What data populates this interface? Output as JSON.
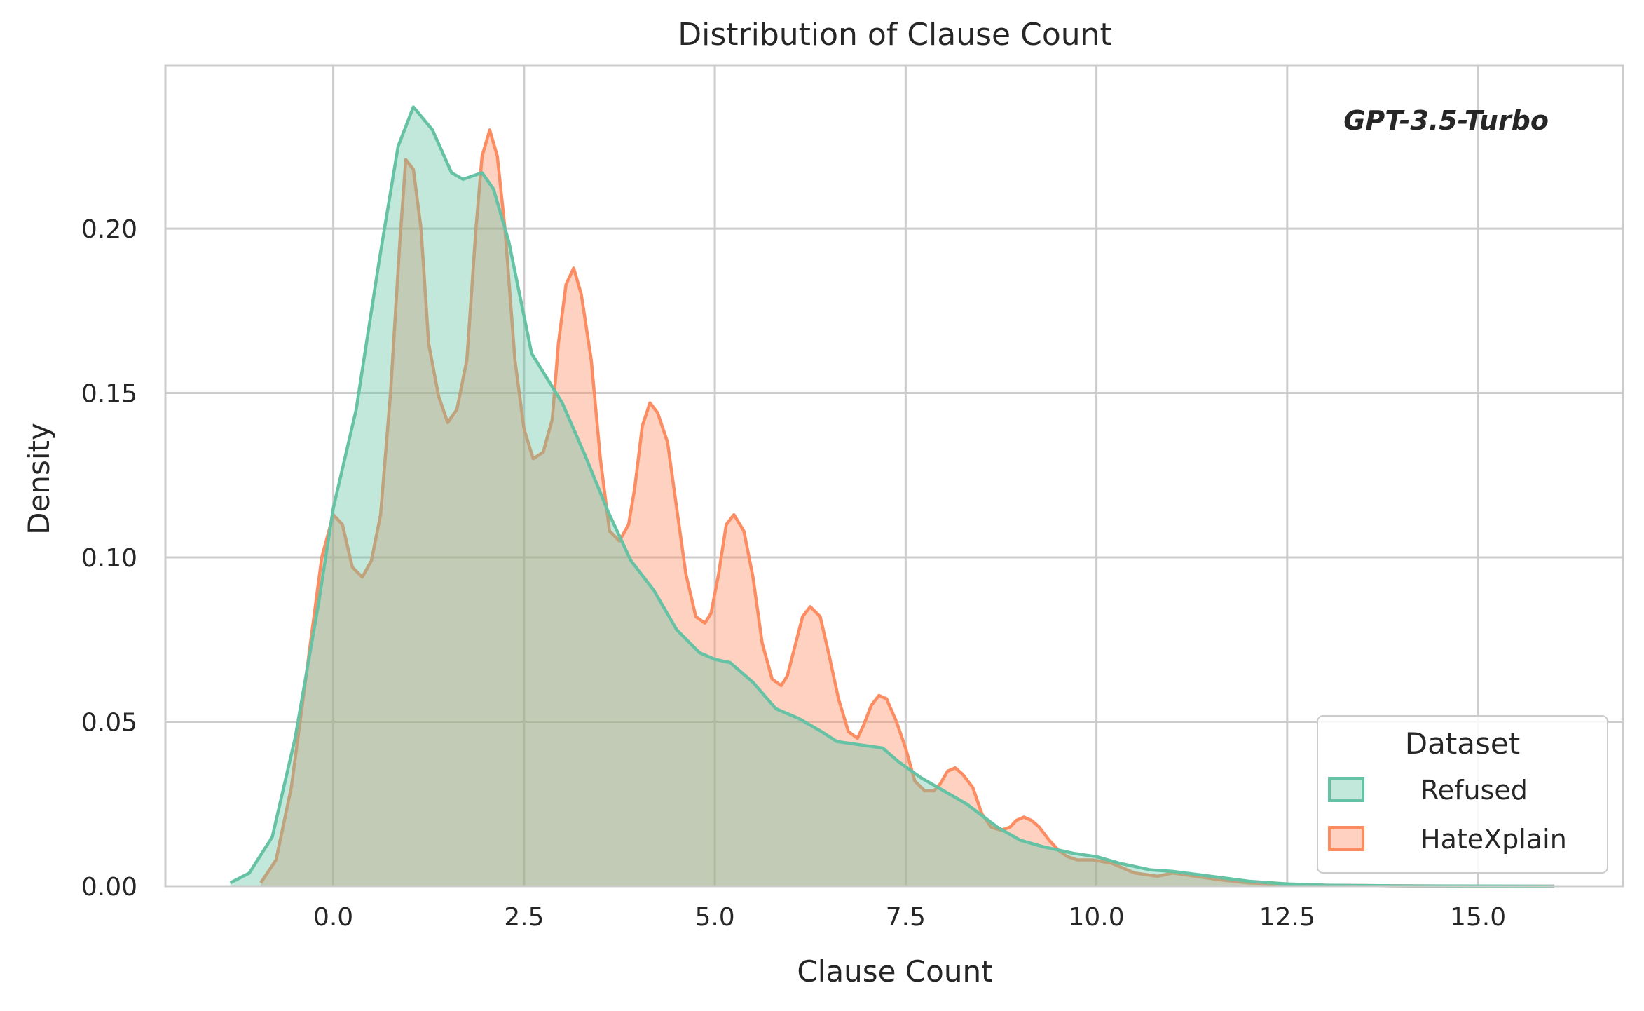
{
  "colors": {
    "Refused": "#66c2a5",
    "HateXplain": "#fc8d62"
  },
  "chart_data": {
    "type": "area",
    "title": "Distribution of Clause Count",
    "xlabel": "Clause Count",
    "ylabel": "Density",
    "xlim": [
      -2.2,
      16.9
    ],
    "ylim": [
      0,
      0.2497
    ],
    "xticks": [
      0.0,
      2.5,
      5.0,
      7.5,
      10.0,
      12.5,
      15.0
    ],
    "xtick_labels": [
      "0.0",
      "2.5",
      "5.0",
      "7.5",
      "10.0",
      "12.5",
      "15.0"
    ],
    "yticks": [
      0.0,
      0.05,
      0.1,
      0.15,
      0.2
    ],
    "ytick_labels": [
      "0.00",
      "0.05",
      "0.10",
      "0.15",
      "0.20"
    ],
    "grid": true,
    "annotation": "GPT-3.5-Turbo",
    "legend": {
      "title": "Dataset",
      "placement": "lower-right",
      "entries": [
        "Refused",
        "HateXplain"
      ]
    },
    "series": [
      {
        "name": "Refused",
        "x": [
          -1.35,
          -1.1,
          -0.8,
          -0.5,
          -0.2,
          0.0,
          0.3,
          0.6,
          0.85,
          1.05,
          1.3,
          1.55,
          1.7,
          1.95,
          2.1,
          2.3,
          2.6,
          3.0,
          3.3,
          3.6,
          3.9,
          4.2,
          4.5,
          4.8,
          5.0,
          5.2,
          5.5,
          5.8,
          6.1,
          6.4,
          6.6,
          6.9,
          7.2,
          7.4,
          7.7,
          8.0,
          8.3,
          8.7,
          9.0,
          9.3,
          9.7,
          10.0,
          10.3,
          10.7,
          11.0,
          11.5,
          12.0,
          12.5,
          13.0,
          14.0,
          15.0,
          16.0
        ],
        "y": [
          0.001,
          0.004,
          0.015,
          0.045,
          0.085,
          0.115,
          0.145,
          0.19,
          0.225,
          0.237,
          0.23,
          0.217,
          0.215,
          0.217,
          0.212,
          0.196,
          0.162,
          0.147,
          0.131,
          0.114,
          0.099,
          0.09,
          0.078,
          0.071,
          0.069,
          0.068,
          0.062,
          0.054,
          0.051,
          0.047,
          0.044,
          0.043,
          0.042,
          0.038,
          0.033,
          0.029,
          0.025,
          0.018,
          0.014,
          0.012,
          0.01,
          0.009,
          0.007,
          0.005,
          0.0045,
          0.003,
          0.0015,
          0.0007,
          0.0003,
          0.0001,
          5e-05,
          0.0
        ],
        "style": "filled-kde"
      },
      {
        "name": "HateXplain",
        "x": [
          -0.95,
          -0.75,
          -0.55,
          -0.35,
          -0.15,
          0.0,
          0.12,
          0.25,
          0.38,
          0.5,
          0.62,
          0.75,
          0.87,
          0.95,
          1.05,
          1.15,
          1.25,
          1.38,
          1.5,
          1.62,
          1.75,
          1.87,
          1.95,
          2.05,
          2.15,
          2.25,
          2.38,
          2.5,
          2.62,
          2.75,
          2.87,
          2.95,
          3.05,
          3.15,
          3.25,
          3.38,
          3.5,
          3.62,
          3.75,
          3.87,
          3.95,
          4.05,
          4.15,
          4.25,
          4.38,
          4.5,
          4.62,
          4.75,
          4.87,
          4.95,
          5.05,
          5.15,
          5.25,
          5.38,
          5.5,
          5.62,
          5.75,
          5.87,
          5.95,
          6.05,
          6.15,
          6.25,
          6.38,
          6.5,
          6.62,
          6.75,
          6.87,
          6.95,
          7.05,
          7.15,
          7.25,
          7.38,
          7.5,
          7.62,
          7.75,
          7.87,
          7.95,
          8.05,
          8.15,
          8.25,
          8.38,
          8.5,
          8.62,
          8.75,
          8.87,
          8.95,
          9.05,
          9.15,
          9.25,
          9.38,
          9.5,
          9.62,
          9.75,
          9.95,
          10.2,
          10.5,
          10.8,
          11.0,
          11.3,
          11.6,
          12.0,
          12.5,
          13.0,
          14.0,
          15.0,
          16.0
        ],
        "y": [
          0.001,
          0.008,
          0.03,
          0.065,
          0.1,
          0.113,
          0.11,
          0.097,
          0.094,
          0.099,
          0.113,
          0.15,
          0.195,
          0.221,
          0.218,
          0.2,
          0.165,
          0.149,
          0.141,
          0.145,
          0.16,
          0.2,
          0.222,
          0.23,
          0.222,
          0.2,
          0.16,
          0.139,
          0.13,
          0.132,
          0.142,
          0.165,
          0.183,
          0.188,
          0.18,
          0.16,
          0.13,
          0.108,
          0.105,
          0.11,
          0.121,
          0.14,
          0.147,
          0.144,
          0.135,
          0.115,
          0.095,
          0.082,
          0.08,
          0.083,
          0.095,
          0.11,
          0.113,
          0.108,
          0.094,
          0.074,
          0.063,
          0.061,
          0.064,
          0.073,
          0.082,
          0.085,
          0.082,
          0.07,
          0.057,
          0.047,
          0.045,
          0.049,
          0.055,
          0.058,
          0.057,
          0.05,
          0.042,
          0.032,
          0.029,
          0.029,
          0.031,
          0.035,
          0.036,
          0.034,
          0.03,
          0.022,
          0.018,
          0.017,
          0.018,
          0.02,
          0.021,
          0.02,
          0.018,
          0.014,
          0.011,
          0.009,
          0.008,
          0.008,
          0.007,
          0.004,
          0.003,
          0.004,
          0.003,
          0.002,
          0.001,
          0.0006,
          0.0003,
          0.0001,
          0.0,
          0.0
        ]
      }
    ]
  }
}
